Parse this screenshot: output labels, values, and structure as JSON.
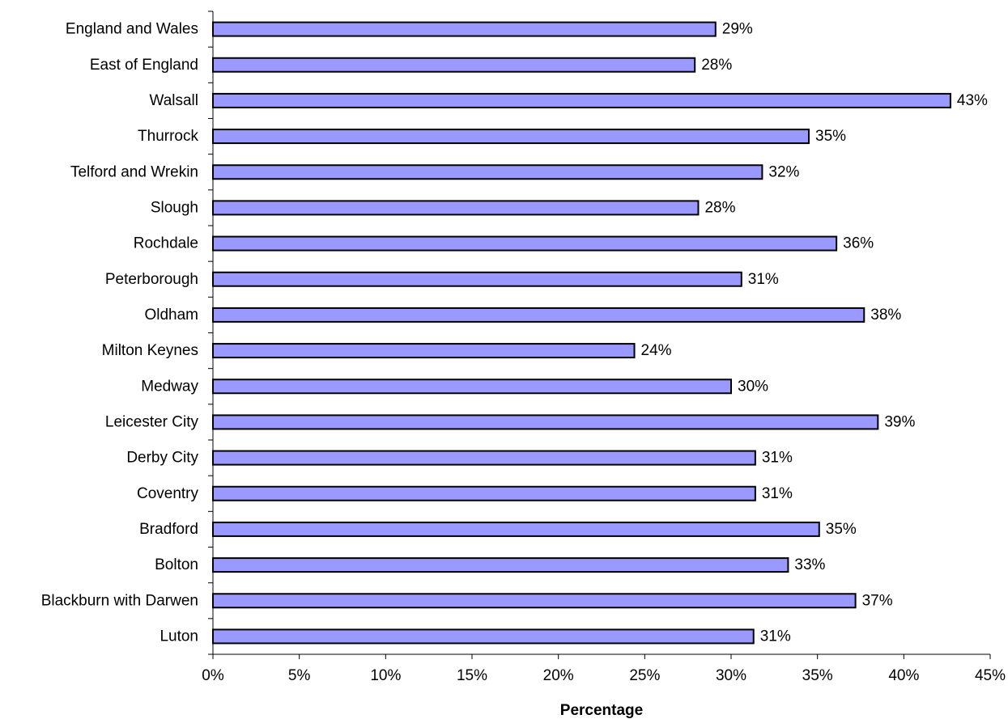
{
  "chart_data": {
    "type": "bar",
    "orientation": "horizontal",
    "categories": [
      "England and Wales",
      "East of England",
      "Walsall",
      "Thurrock",
      "Telford and Wrekin",
      "Slough",
      "Rochdale",
      "Peterborough",
      "Oldham",
      "Milton Keynes",
      "Medway",
      "Leicester City",
      "Derby City",
      "Coventry",
      "Bradford",
      "Bolton",
      "Blackburn with Darwen",
      "Luton"
    ],
    "values": [
      29.1,
      27.9,
      42.7,
      34.5,
      31.8,
      28.1,
      36.1,
      30.6,
      37.7,
      24.4,
      30.0,
      38.5,
      31.4,
      31.4,
      35.1,
      33.3,
      37.2,
      31.3
    ],
    "data_labels": [
      "29%",
      "28%",
      "43%",
      "35%",
      "32%",
      "28%",
      "36%",
      "31%",
      "38%",
      "24%",
      "30%",
      "39%",
      "31%",
      "31%",
      "35%",
      "33%",
      "37%",
      "31%"
    ],
    "xlim": [
      0,
      45
    ],
    "x_ticks": [
      0,
      5,
      10,
      15,
      20,
      25,
      30,
      35,
      40,
      45
    ],
    "x_tick_labels": [
      "0%",
      "5%",
      "10%",
      "15%",
      "20%",
      "25%",
      "30%",
      "35%",
      "40%",
      "45%"
    ],
    "xlabel": "Percentage",
    "ylabel": "",
    "title": "",
    "bar_color": "#9999ff",
    "bar_border_color": "#000000",
    "grid": false,
    "legend": false
  }
}
